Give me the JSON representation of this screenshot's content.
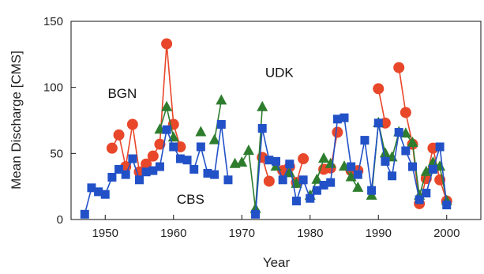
{
  "chart_data": {
    "type": "line",
    "title": "",
    "xlabel": "Year",
    "ylabel": "Mean Discharge [CMS]",
    "xlim": [
      1945,
      2005
    ],
    "ylim": [
      0,
      150
    ],
    "xticks": [
      1950,
      1960,
      1970,
      1980,
      1990,
      2000
    ],
    "yticks": [
      0,
      50,
      100,
      150
    ],
    "grid": false,
    "series": [
      {
        "name": "BGN",
        "color": "#e8472a",
        "marker": "circle",
        "points": [
          [
            1951,
            54
          ],
          [
            1952,
            64
          ],
          [
            1953,
            40
          ],
          [
            1954,
            72
          ],
          [
            1955,
            36
          ],
          [
            1956,
            42
          ],
          [
            1957,
            48
          ],
          [
            1958,
            57
          ],
          [
            1959,
            133
          ],
          [
            1960,
            72
          ],
          [
            1961,
            55
          ],
          [
            1973,
            47
          ],
          [
            1974,
            29
          ],
          [
            1976,
            37
          ],
          [
            1977,
            40
          ],
          [
            1978,
            28
          ],
          [
            1979,
            46
          ],
          [
            1982,
            38
          ],
          [
            1983,
            39
          ],
          [
            1984,
            66
          ],
          [
            1986,
            37
          ],
          [
            1987,
            37
          ],
          [
            1990,
            99
          ],
          [
            1991,
            73
          ],
          [
            1993,
            115
          ],
          [
            1994,
            81
          ],
          [
            1995,
            57
          ],
          [
            1996,
            12
          ],
          [
            1997,
            31
          ],
          [
            1998,
            54
          ],
          [
            1999,
            30
          ],
          [
            2000,
            14
          ]
        ]
      },
      {
        "name": "UDK",
        "color": "#2e7d2e",
        "marker": "triangle",
        "points": [
          [
            1958,
            68
          ],
          [
            1959,
            85
          ],
          [
            1960,
            62
          ],
          [
            1964,
            66
          ],
          [
            1966,
            60
          ],
          [
            1967,
            90
          ],
          [
            1969,
            42
          ],
          [
            1970,
            43
          ],
          [
            1971,
            52
          ],
          [
            1972,
            8
          ],
          [
            1973,
            85
          ],
          [
            1975,
            40
          ],
          [
            1977,
            35
          ],
          [
            1978,
            27
          ],
          [
            1980,
            18
          ],
          [
            1981,
            30
          ],
          [
            1982,
            46
          ],
          [
            1983,
            42
          ],
          [
            1985,
            40
          ],
          [
            1986,
            32
          ],
          [
            1987,
            24
          ],
          [
            1989,
            18
          ],
          [
            1990,
            73
          ],
          [
            1991,
            50
          ],
          [
            1992,
            47
          ],
          [
            1993,
            66
          ],
          [
            1994,
            65
          ],
          [
            1995,
            58
          ],
          [
            1996,
            18
          ],
          [
            1997,
            36
          ],
          [
            1998,
            43
          ],
          [
            1999,
            40
          ],
          [
            2000,
            14
          ]
        ]
      },
      {
        "name": "CBS",
        "color": "#2251c7",
        "marker": "square",
        "points": [
          [
            1947,
            4
          ],
          [
            1948,
            24
          ],
          [
            1949,
            21
          ],
          [
            1950,
            19
          ],
          [
            1951,
            32
          ],
          [
            1952,
            38
          ],
          [
            1953,
            34
          ],
          [
            1954,
            46
          ],
          [
            1955,
            30
          ],
          [
            1956,
            36
          ],
          [
            1957,
            37
          ],
          [
            1958,
            40
          ],
          [
            1959,
            68
          ],
          [
            1960,
            55
          ],
          [
            1961,
            46
          ],
          [
            1962,
            45
          ],
          [
            1963,
            38
          ],
          [
            1964,
            55
          ],
          [
            1965,
            35
          ],
          [
            1966,
            34
          ],
          [
            1967,
            72
          ],
          [
            1968,
            30
          ],
          [
            1972,
            4
          ],
          [
            1973,
            69
          ],
          [
            1974,
            45
          ],
          [
            1975,
            44
          ],
          [
            1976,
            30
          ],
          [
            1977,
            42
          ],
          [
            1978,
            14
          ],
          [
            1979,
            30
          ],
          [
            1980,
            16
          ],
          [
            1981,
            22
          ],
          [
            1982,
            26
          ],
          [
            1983,
            28
          ],
          [
            1984,
            76
          ],
          [
            1985,
            77
          ],
          [
            1986,
            40
          ],
          [
            1987,
            34
          ],
          [
            1988,
            60
          ],
          [
            1989,
            22
          ],
          [
            1990,
            73
          ],
          [
            1991,
            44
          ],
          [
            1992,
            33
          ],
          [
            1993,
            66
          ],
          [
            1994,
            52
          ],
          [
            1995,
            40
          ],
          [
            1996,
            15
          ],
          [
            1997,
            20
          ],
          [
            1998,
            38
          ],
          [
            1999,
            55
          ],
          [
            2000,
            11
          ]
        ]
      }
    ],
    "annotations": [
      {
        "text": "BGN",
        "x": 1952.5,
        "y": 92
      },
      {
        "text": "UDK",
        "x": 1975.5,
        "y": 108
      },
      {
        "text": "CBS",
        "x": 1962.5,
        "y": 12
      }
    ]
  }
}
